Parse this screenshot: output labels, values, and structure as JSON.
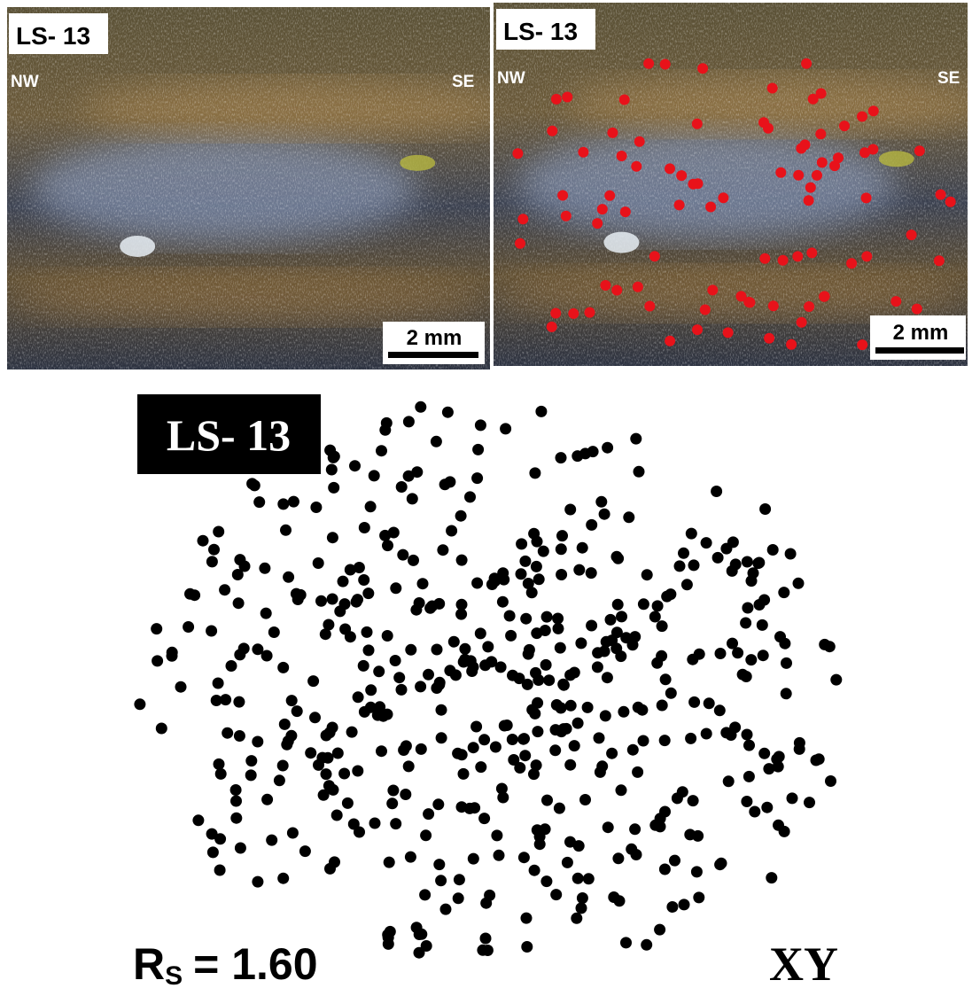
{
  "panels": [
    {
      "label": "LS- 13",
      "left_label": "NW",
      "right_label": "SE",
      "scale_bar": "2 mm"
    },
    {
      "label": "LS- 13",
      "left_label": "NW",
      "right_label": "SE",
      "scale_bar": "2 mm"
    }
  ],
  "fry_plot": {
    "label": "LS- 13",
    "ratio_symbol": "R",
    "ratio_subscript": "S",
    "ratio_value": "= 1.60",
    "plane": "XY"
  }
}
